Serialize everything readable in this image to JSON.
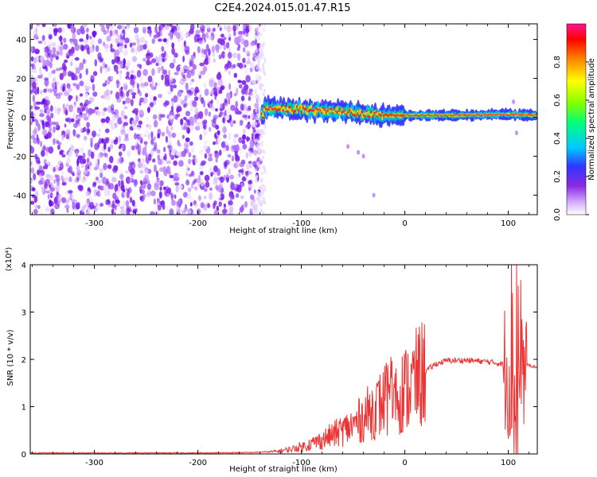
{
  "title": "C2E4.2024.015.01.47.R15",
  "chart_data": [
    {
      "type": "heatmap",
      "xlabel": "Height of straight line (km)",
      "ylabel": "Frequency (Hz)",
      "xlim": [
        -362,
        128
      ],
      "ylim": [
        -50,
        48
      ],
      "xticks": [
        -300,
        -200,
        -100,
        0,
        100
      ],
      "yticks": [
        -40,
        -20,
        0,
        20,
        40
      ],
      "colorbar": {
        "label": "Normalized spectral amplitude",
        "range": [
          0.0,
          1.0
        ],
        "ticks": [
          "0.0",
          "0.2",
          "0.4",
          "0.6",
          "0.8"
        ],
        "colors": [
          "#ffffff",
          "#d9b3ff",
          "#8a2be2",
          "#3333ff",
          "#00c8ff",
          "#00ff7f",
          "#7fff00",
          "#ffff00",
          "#ff8000",
          "#ff0000",
          "#ff1493"
        ]
      },
      "regions": [
        {
          "name": "noise",
          "x_range": [
            -362,
            -138
          ],
          "freq_range": [
            -50,
            48
          ],
          "amplitude": 0.2
        },
        {
          "name": "signal",
          "x_range": [
            -138,
            128
          ],
          "center_freq": [
            {
              "x": -135,
              "f": 5
            },
            {
              "x": -100,
              "f": 4
            },
            {
              "x": -60,
              "f": 3
            },
            {
              "x": -20,
              "f": 1
            },
            {
              "x": 0,
              "f": 1
            },
            {
              "x": 50,
              "f": 1
            },
            {
              "x": 100,
              "f": 1.5
            },
            {
              "x": 128,
              "f": 1
            }
          ]
        }
      ]
    },
    {
      "type": "line",
      "xlabel": "Height of straight line (km)",
      "ylabel": "SNR (10 * v/v)",
      "scale_label": "(x10⁴)",
      "xlim": [
        -362,
        128
      ],
      "ylim": [
        0,
        4
      ],
      "xticks": [
        -300,
        -200,
        -100,
        0,
        100
      ],
      "yticks": [
        0,
        1,
        2,
        3,
        4
      ],
      "color": "#ee3333",
      "series": [
        {
          "x": [
            -362,
            -300,
            -200,
            -150,
            -125,
            -110,
            -100,
            -90,
            -80,
            -70,
            -60,
            -50,
            -40,
            -30,
            -20,
            -15,
            -10,
            0,
            10,
            20,
            30,
            40,
            60,
            80,
            95,
            100,
            105,
            108,
            110,
            112,
            115,
            120,
            128
          ],
          "y": [
            0.02,
            0.02,
            0.02,
            0.03,
            0.05,
            0.1,
            0.15,
            0.22,
            0.3,
            0.4,
            0.5,
            0.6,
            0.78,
            0.95,
            1.1,
            1.2,
            1.25,
            1.35,
            1.55,
            1.75,
            1.9,
            1.97,
            1.98,
            1.95,
            1.9,
            1.7,
            1.1,
            0.3,
            1.0,
            2.0,
            1.9,
            1.87,
            1.83
          ]
        }
      ]
    }
  ]
}
